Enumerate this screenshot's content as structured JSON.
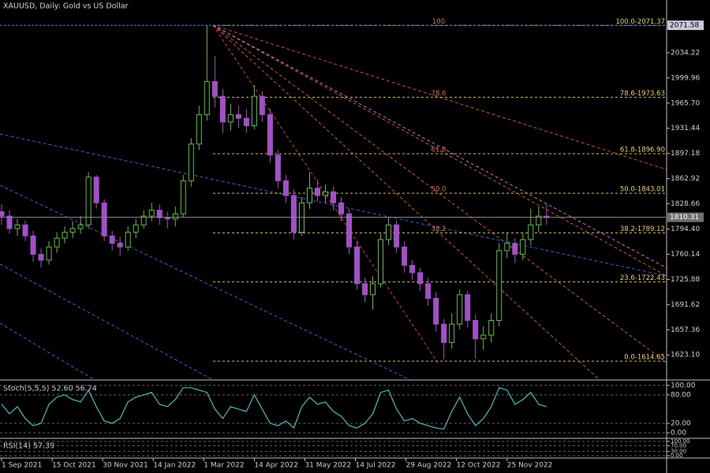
{
  "chart_data": [
    {
      "type": "candlestick",
      "title": "XAUUSD, Daily:  Gold vs US Dollar",
      "up_color": "#5fbf3f",
      "down_color": "#a24fc8",
      "xlim": [
        -1,
        421
      ],
      "ylim": [
        1589,
        2106
      ],
      "xticks": [
        {
          "value": 0,
          "label": "1 Sep 2021"
        },
        {
          "value": 32,
          "label": "15 Oct 2021"
        },
        {
          "value": 64,
          "label": "30 Nov 2021"
        },
        {
          "value": 96,
          "label": "14 Jan 2022"
        },
        {
          "value": 128,
          "label": "1 Mar 2022"
        },
        {
          "value": 160,
          "label": "14 Apr 2022"
        },
        {
          "value": 192,
          "label": "31 May 2022"
        },
        {
          "value": 224,
          "label": "14 Jul 2022"
        },
        {
          "value": 256,
          "label": "29 Aug 2022"
        },
        {
          "value": 288,
          "label": "12 Oct 2022"
        },
        {
          "value": 320,
          "label": "25 Nov 2022"
        }
      ],
      "yticks": [
        2034.22,
        1999.96,
        {
          "value": 1965.7,
          "label": "1965.70"
        },
        1931.44,
        1897.18,
        1862.92,
        1828.66,
        {
          "value": 1794.4,
          "label": "1794.40"
        },
        1760.14,
        1725.88,
        1691.62,
        1657.36,
        {
          "value": 1623.1,
          "label": "1623.10"
        }
      ],
      "markers": [
        2071.58,
        1810.31
      ],
      "fib": [
        {
          "value": 2071.37,
          "label": "100.0-2071.37",
          "tag": "100"
        },
        {
          "value": 1973.63,
          "label": "78.6-1973.63",
          "tag": "78.6"
        },
        {
          "value": 1896.9,
          "label": "61.8-1896.90",
          "tag": "61.8"
        },
        {
          "value": 1843.01,
          "label": "50.0-1843.01",
          "tag": "50.0"
        },
        {
          "value": 1789.12,
          "label": "38.2-1789.12",
          "tag": "38.2"
        },
        {
          "value": 1722.43,
          "label": "23.6-1722.43"
        },
        {
          "value": 1614.65,
          "label": "0.0-1614.65"
        }
      ],
      "x": [
        0,
        5,
        10,
        15,
        20,
        25,
        30,
        35,
        40,
        45,
        50,
        55,
        60,
        65,
        70,
        75,
        80,
        85,
        90,
        95,
        100,
        105,
        110,
        115,
        120,
        125,
        130,
        135,
        140,
        145,
        150,
        155,
        160,
        165,
        170,
        175,
        180,
        185,
        190,
        195,
        200,
        205,
        210,
        215,
        220,
        225,
        230,
        235,
        240,
        245,
        250,
        255,
        260,
        265,
        270,
        275,
        280,
        285,
        290,
        295,
        300,
        305,
        310,
        315,
        320,
        325,
        330,
        335,
        340,
        345
      ],
      "open": [
        1818,
        1812,
        1795,
        1800,
        1785,
        1760,
        1752,
        1770,
        1782,
        1790,
        1795,
        1800,
        1865,
        1830,
        1785,
        1775,
        1770,
        1790,
        1800,
        1812,
        1820,
        1810,
        1808,
        1815,
        1860,
        1910,
        1950,
        1995,
        1975,
        1940,
        1950,
        1945,
        1935,
        1975,
        1950,
        1895,
        1860,
        1840,
        1790,
        1830,
        1850,
        1840,
        1845,
        1830,
        1815,
        1770,
        1720,
        1705,
        1720,
        1780,
        1800,
        1770,
        1745,
        1735,
        1720,
        1700,
        1665,
        1640,
        1665,
        1705,
        1670,
        1645,
        1650,
        1670,
        1765,
        1775,
        1760,
        1780,
        1800,
        1812
      ],
      "high": [
        1828,
        1820,
        1808,
        1806,
        1792,
        1768,
        1778,
        1790,
        1798,
        1805,
        1812,
        1872,
        1868,
        1835,
        1792,
        1784,
        1798,
        1808,
        1820,
        1830,
        1828,
        1818,
        1825,
        1868,
        1918,
        1962,
        2071,
        2030,
        1985,
        1965,
        1962,
        1958,
        1990,
        1982,
        1958,
        1902,
        1868,
        1848,
        1838,
        1872,
        1862,
        1855,
        1852,
        1838,
        1822,
        1778,
        1728,
        1730,
        1788,
        1810,
        1806,
        1778,
        1752,
        1742,
        1728,
        1708,
        1672,
        1680,
        1712,
        1710,
        1678,
        1662,
        1680,
        1775,
        1790,
        1782,
        1790,
        1822,
        1825,
        1828
      ],
      "low": [
        1800,
        1788,
        1785,
        1778,
        1750,
        1742,
        1746,
        1762,
        1775,
        1782,
        1788,
        1795,
        1822,
        1778,
        1765,
        1758,
        1765,
        1782,
        1795,
        1805,
        1800,
        1795,
        1798,
        1810,
        1852,
        1902,
        1942,
        1960,
        1925,
        1928,
        1932,
        1925,
        1930,
        1940,
        1885,
        1850,
        1830,
        1780,
        1785,
        1822,
        1832,
        1830,
        1820,
        1805,
        1760,
        1712,
        1695,
        1685,
        1715,
        1772,
        1762,
        1735,
        1725,
        1710,
        1690,
        1655,
        1617,
        1632,
        1658,
        1660,
        1618,
        1630,
        1640,
        1662,
        1755,
        1748,
        1752,
        1772,
        1790,
        1800
      ],
      "close": [
        1812,
        1795,
        1800,
        1785,
        1760,
        1752,
        1770,
        1782,
        1790,
        1795,
        1800,
        1865,
        1830,
        1785,
        1775,
        1770,
        1790,
        1800,
        1812,
        1820,
        1810,
        1808,
        1815,
        1860,
        1910,
        1950,
        1995,
        1975,
        1940,
        1950,
        1945,
        1935,
        1975,
        1950,
        1895,
        1860,
        1840,
        1790,
        1830,
        1850,
        1840,
        1845,
        1830,
        1815,
        1770,
        1720,
        1705,
        1720,
        1780,
        1800,
        1770,
        1745,
        1735,
        1720,
        1700,
        1665,
        1640,
        1665,
        1705,
        1670,
        1645,
        1650,
        1670,
        1765,
        1775,
        1760,
        1780,
        1800,
        1812,
        1810
      ]
    },
    {
      "type": "line",
      "label": "Stoch(5,5,5) 52.60 56.74",
      "color": "#3fbfbf",
      "ylim": [
        -10,
        108
      ],
      "yticks": [
        {
          "value": 100,
          "label": "100.00"
        },
        {
          "value": 80,
          "label": "80.00"
        },
        {
          "value": 20,
          "label": "20.00"
        },
        {
          "value": 0,
          "label": "0.00"
        }
      ],
      "values": [
        60,
        40,
        55,
        30,
        15,
        20,
        60,
        75,
        80,
        70,
        65,
        90,
        55,
        25,
        20,
        30,
        65,
        75,
        80,
        85,
        60,
        55,
        70,
        95,
        95,
        90,
        85,
        50,
        30,
        55,
        50,
        45,
        80,
        50,
        20,
        15,
        25,
        10,
        55,
        75,
        60,
        65,
        45,
        35,
        15,
        10,
        20,
        40,
        85,
        90,
        50,
        25,
        30,
        20,
        15,
        10,
        8,
        45,
        75,
        40,
        15,
        30,
        55,
        95,
        90,
        60,
        70,
        85,
        60,
        55
      ]
    },
    {
      "type": "line",
      "label": "RSI(14) 57.39",
      "ylim": [
        -10,
        110
      ],
      "yticks": [
        {
          "value": 100,
          "label": "100.00"
        },
        {
          "value": 70,
          "label": "70.00"
        },
        {
          "value": 30,
          "label": "30.00"
        },
        {
          "value": 0,
          "label": "0.00"
        }
      ]
    }
  ]
}
